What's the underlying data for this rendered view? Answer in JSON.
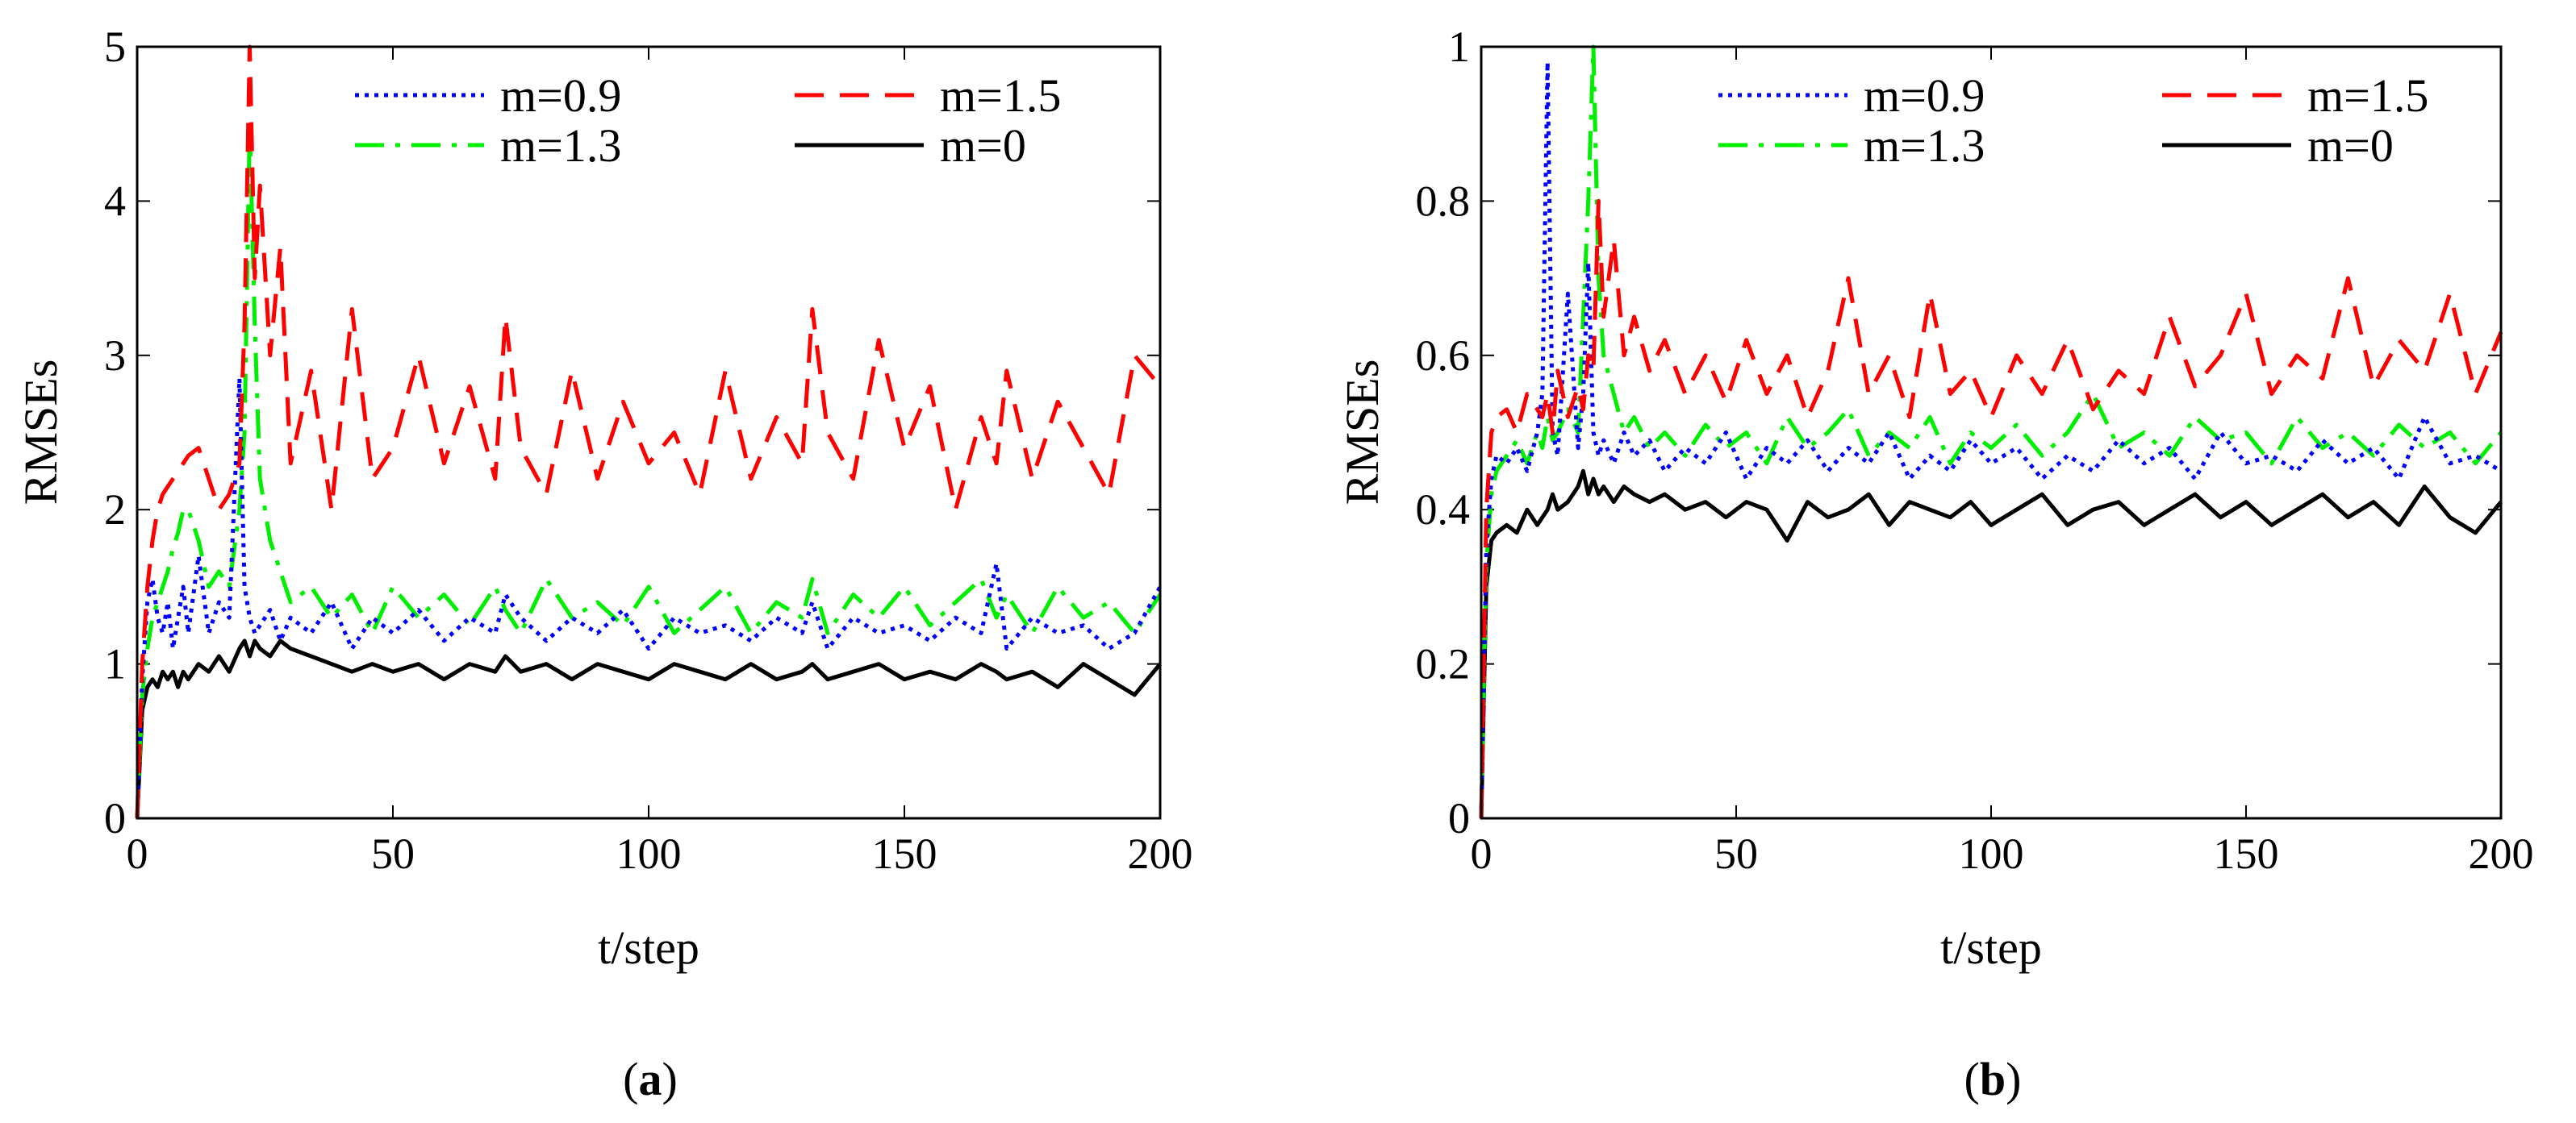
{
  "figure": {
    "caption_a": {
      "open": "(",
      "letter": "a",
      "close": ")"
    },
    "caption_b": {
      "open": "(",
      "letter": "b",
      "close": ")"
    }
  },
  "chart_data": [
    {
      "id": "a",
      "type": "line",
      "title": "",
      "xlabel": "t/step",
      "ylabel": "RMSEs",
      "xlim": [
        0,
        200
      ],
      "ylim": [
        0,
        5
      ],
      "xticks": [
        0,
        50,
        100,
        150,
        200
      ],
      "yticks": [
        0,
        1,
        2,
        3,
        4,
        5
      ],
      "xtick_labels": [
        "0",
        "50",
        "100",
        "150",
        "200"
      ],
      "ytick_labels": [
        "0",
        "1",
        "2",
        "3",
        "4",
        "5"
      ],
      "legend_position": "top-center",
      "x": [
        0,
        1,
        2,
        3,
        4,
        5,
        6,
        7,
        8,
        9,
        10,
        12,
        14,
        16,
        18,
        20,
        21,
        22,
        23,
        24,
        26,
        28,
        30,
        34,
        38,
        42,
        46,
        50,
        55,
        60,
        65,
        70,
        72,
        75,
        80,
        85,
        90,
        95,
        100,
        105,
        110,
        115,
        120,
        125,
        130,
        132,
        135,
        140,
        145,
        150,
        155,
        160,
        165,
        168,
        170,
        175,
        180,
        185,
        190,
        195,
        200
      ],
      "series": [
        {
          "name": "m=0.9",
          "color": "#0000ff",
          "dash": "dotted",
          "values": [
            0.0,
            0.9,
            1.4,
            1.55,
            1.3,
            1.2,
            1.4,
            1.1,
            1.3,
            1.5,
            1.2,
            1.7,
            1.2,
            1.4,
            1.3,
            2.85,
            1.5,
            1.3,
            1.2,
            1.25,
            1.35,
            1.15,
            1.3,
            1.2,
            1.4,
            1.1,
            1.3,
            1.2,
            1.35,
            1.15,
            1.3,
            1.2,
            1.45,
            1.3,
            1.15,
            1.3,
            1.2,
            1.35,
            1.1,
            1.3,
            1.2,
            1.25,
            1.15,
            1.3,
            1.2,
            1.4,
            1.1,
            1.3,
            1.2,
            1.25,
            1.15,
            1.3,
            1.2,
            1.65,
            1.1,
            1.3,
            1.2,
            1.25,
            1.1,
            1.2,
            1.5
          ]
        },
        {
          "name": "m=1.5",
          "color": "#ff0000",
          "dash": "dashed",
          "values": [
            0.0,
            1.0,
            1.5,
            1.8,
            2.0,
            2.1,
            2.15,
            2.2,
            2.25,
            2.3,
            2.35,
            2.4,
            2.2,
            2.0,
            2.1,
            2.3,
            3.2,
            5.0,
            3.5,
            4.1,
            3.0,
            3.7,
            2.3,
            2.9,
            2.0,
            3.3,
            2.2,
            2.4,
            3.0,
            2.3,
            2.8,
            2.2,
            3.25,
            2.4,
            2.1,
            2.9,
            2.2,
            2.7,
            2.3,
            2.5,
            2.1,
            2.9,
            2.2,
            2.6,
            2.3,
            3.3,
            2.5,
            2.2,
            3.1,
            2.4,
            2.8,
            2.0,
            2.6,
            2.3,
            2.9,
            2.2,
            2.7,
            2.4,
            2.1,
            3.0,
            2.8
          ]
        },
        {
          "name": "m=1.3",
          "color": "#00ee00",
          "dash": "dashdot",
          "values": [
            0.0,
            0.8,
            1.1,
            1.3,
            1.4,
            1.5,
            1.6,
            1.75,
            1.85,
            2.0,
            2.0,
            1.8,
            1.5,
            1.6,
            1.5,
            2.0,
            2.5,
            4.5,
            3.2,
            2.2,
            1.8,
            1.6,
            1.4,
            1.5,
            1.3,
            1.45,
            1.2,
            1.5,
            1.3,
            1.45,
            1.25,
            1.5,
            1.35,
            1.2,
            1.55,
            1.3,
            1.4,
            1.25,
            1.5,
            1.2,
            1.35,
            1.5,
            1.2,
            1.4,
            1.3,
            1.55,
            1.2,
            1.45,
            1.3,
            1.5,
            1.25,
            1.4,
            1.55,
            1.3,
            1.45,
            1.2,
            1.5,
            1.3,
            1.4,
            1.2,
            1.45
          ]
        },
        {
          "name": "m=0",
          "color": "#000000",
          "dash": "solid",
          "values": [
            0.0,
            0.7,
            0.85,
            0.9,
            0.85,
            0.95,
            0.9,
            0.95,
            0.85,
            0.95,
            0.9,
            1.0,
            0.95,
            1.05,
            0.95,
            1.1,
            1.15,
            1.05,
            1.15,
            1.1,
            1.05,
            1.15,
            1.1,
            1.05,
            1.0,
            0.95,
            1.0,
            0.95,
            1.0,
            0.9,
            1.0,
            0.95,
            1.05,
            0.95,
            1.0,
            0.9,
            1.0,
            0.95,
            0.9,
            1.0,
            0.95,
            0.9,
            1.0,
            0.9,
            0.95,
            1.0,
            0.9,
            0.95,
            1.0,
            0.9,
            0.95,
            0.9,
            1.0,
            0.95,
            0.9,
            0.95,
            0.85,
            1.0,
            0.9,
            0.8,
            1.0
          ]
        }
      ]
    },
    {
      "id": "b",
      "type": "line",
      "title": "",
      "xlabel": "t/step",
      "ylabel": "RMSEs",
      "xlim": [
        0,
        200
      ],
      "ylim": [
        0,
        1
      ],
      "xticks": [
        0,
        50,
        100,
        150,
        200
      ],
      "yticks": [
        0,
        0.2,
        0.4,
        0.6,
        0.8,
        1
      ],
      "xtick_labels": [
        "0",
        "50",
        "100",
        "150",
        "200"
      ],
      "ytick_labels": [
        "0",
        "0.2",
        "0.4",
        "0.6",
        "0.8",
        "1"
      ],
      "legend_position": "top-center",
      "x": [
        0,
        1,
        2,
        3,
        5,
        7,
        9,
        11,
        12,
        13,
        14,
        15,
        17,
        19,
        20,
        21,
        22,
        23,
        24,
        26,
        28,
        30,
        33,
        36,
        40,
        44,
        48,
        52,
        56,
        60,
        64,
        68,
        72,
        76,
        80,
        84,
        88,
        92,
        96,
        100,
        105,
        110,
        115,
        120,
        125,
        130,
        135,
        140,
        145,
        150,
        155,
        160,
        165,
        170,
        175,
        180,
        185,
        190,
        195,
        200
      ],
      "series": [
        {
          "name": "m=0.9",
          "color": "#0000ff",
          "dash": "dotted",
          "values": [
            0.0,
            0.35,
            0.44,
            0.47,
            0.46,
            0.48,
            0.45,
            0.5,
            0.55,
            0.98,
            0.5,
            0.47,
            0.68,
            0.48,
            0.55,
            0.72,
            0.5,
            0.47,
            0.49,
            0.46,
            0.5,
            0.47,
            0.49,
            0.45,
            0.48,
            0.46,
            0.5,
            0.44,
            0.48,
            0.46,
            0.49,
            0.45,
            0.48,
            0.46,
            0.5,
            0.44,
            0.47,
            0.45,
            0.49,
            0.46,
            0.48,
            0.44,
            0.47,
            0.45,
            0.49,
            0.46,
            0.48,
            0.44,
            0.5,
            0.46,
            0.47,
            0.45,
            0.49,
            0.46,
            0.48,
            0.44,
            0.52,
            0.46,
            0.47,
            0.45
          ]
        },
        {
          "name": "m=1.5",
          "color": "#ff0000",
          "dash": "dashed",
          "values": [
            0.0,
            0.4,
            0.5,
            0.52,
            0.53,
            0.5,
            0.55,
            0.53,
            0.52,
            0.55,
            0.5,
            0.58,
            0.52,
            0.56,
            0.53,
            0.6,
            0.58,
            0.8,
            0.65,
            0.75,
            0.6,
            0.65,
            0.58,
            0.62,
            0.55,
            0.6,
            0.54,
            0.62,
            0.55,
            0.6,
            0.52,
            0.58,
            0.7,
            0.55,
            0.6,
            0.52,
            0.68,
            0.55,
            0.58,
            0.52,
            0.6,
            0.55,
            0.62,
            0.53,
            0.58,
            0.55,
            0.65,
            0.56,
            0.6,
            0.68,
            0.55,
            0.6,
            0.57,
            0.7,
            0.56,
            0.62,
            0.58,
            0.68,
            0.55,
            0.63
          ]
        },
        {
          "name": "m=1.3",
          "color": "#00ee00",
          "dash": "dashdot",
          "values": [
            0.0,
            0.33,
            0.42,
            0.45,
            0.47,
            0.49,
            0.46,
            0.5,
            0.48,
            0.52,
            0.49,
            0.5,
            0.53,
            0.5,
            0.65,
            0.8,
            1.0,
            0.7,
            0.6,
            0.55,
            0.5,
            0.52,
            0.48,
            0.5,
            0.47,
            0.51,
            0.48,
            0.5,
            0.46,
            0.52,
            0.48,
            0.5,
            0.53,
            0.47,
            0.5,
            0.48,
            0.52,
            0.46,
            0.5,
            0.48,
            0.51,
            0.47,
            0.5,
            0.55,
            0.48,
            0.5,
            0.47,
            0.52,
            0.49,
            0.5,
            0.46,
            0.52,
            0.48,
            0.5,
            0.47,
            0.51,
            0.48,
            0.5,
            0.46,
            0.5
          ]
        },
        {
          "name": "m=0",
          "color": "#000000",
          "dash": "solid",
          "values": [
            0.0,
            0.3,
            0.36,
            0.37,
            0.38,
            0.37,
            0.4,
            0.38,
            0.39,
            0.4,
            0.42,
            0.4,
            0.41,
            0.43,
            0.45,
            0.42,
            0.44,
            0.42,
            0.43,
            0.41,
            0.43,
            0.42,
            0.41,
            0.42,
            0.4,
            0.41,
            0.39,
            0.41,
            0.4,
            0.36,
            0.41,
            0.39,
            0.4,
            0.42,
            0.38,
            0.41,
            0.4,
            0.39,
            0.41,
            0.38,
            0.4,
            0.42,
            0.38,
            0.4,
            0.41,
            0.38,
            0.4,
            0.42,
            0.39,
            0.41,
            0.38,
            0.4,
            0.42,
            0.39,
            0.41,
            0.38,
            0.43,
            0.39,
            0.37,
            0.41
          ]
        }
      ]
    }
  ]
}
